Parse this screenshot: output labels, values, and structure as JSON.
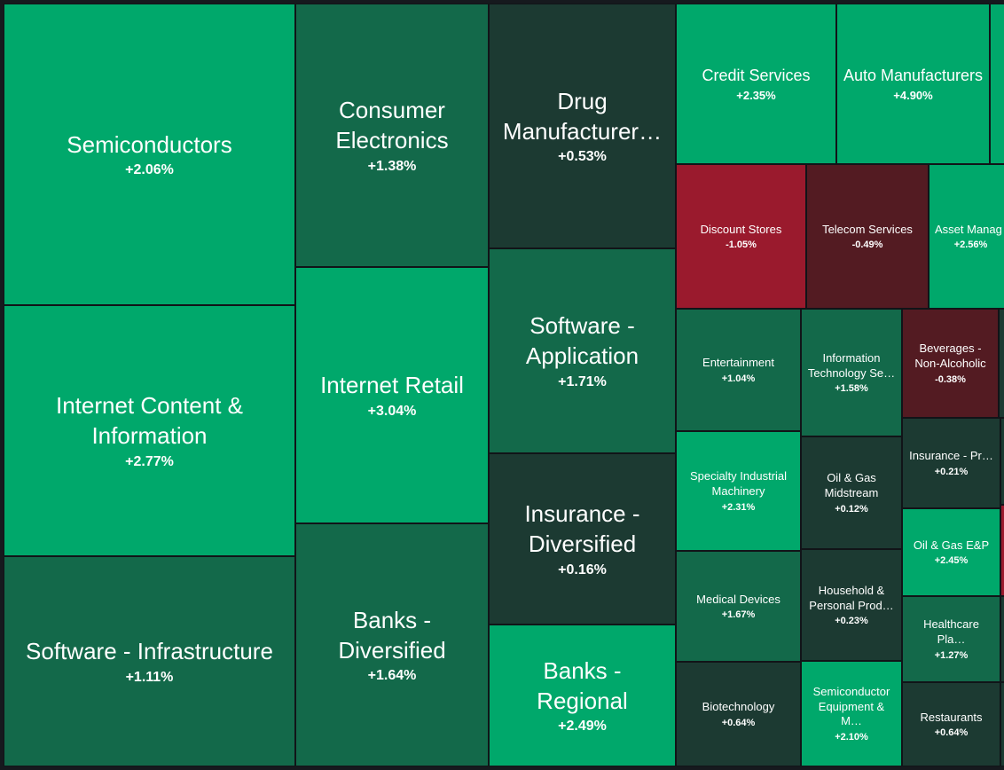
{
  "colors": {
    "bright_green": "#00a86b",
    "mid_green": "#13694a",
    "dark_green": "#1c3a32",
    "red": "#9a1a2d",
    "dark_red": "#531b22",
    "background": "#16191e"
  },
  "tiles": {
    "semiconductors": {
      "name": "Semiconductors",
      "change": "+2.06%"
    },
    "internet_content": {
      "name": "Internet Content & Information",
      "change": "+2.77%"
    },
    "software_infrastructure": {
      "name": "Software - Infrastructure",
      "change": "+1.11%"
    },
    "consumer_electronics": {
      "name": "Consumer Electronics",
      "change": "+1.38%"
    },
    "internet_retail": {
      "name": "Internet Retail",
      "change": "+3.04%"
    },
    "banks_diversified": {
      "name": "Banks - Diversified",
      "change": "+1.64%"
    },
    "drug_manufacturers": {
      "name": "Drug Manufacturer…",
      "change": "+0.53%"
    },
    "software_application": {
      "name": "Software - Application",
      "change": "+1.71%"
    },
    "insurance_diversified": {
      "name": "Insurance - Diversified",
      "change": "+0.16%"
    },
    "banks_regional": {
      "name": "Banks - Regional",
      "change": "+2.49%"
    },
    "credit_services": {
      "name": "Credit Services",
      "change": "+2.35%"
    },
    "auto_manufacturers": {
      "name": "Auto Manufacturers",
      "change": "+4.90%"
    },
    "discount_stores": {
      "name": "Discount Stores",
      "change": "-1.05%"
    },
    "telecom_services": {
      "name": "Telecom Services",
      "change": "-0.49%"
    },
    "asset_management": {
      "name": "Asset Manag",
      "change": "+2.56%"
    },
    "entertainment": {
      "name": "Entertainment",
      "change": "+1.04%"
    },
    "information_technology": {
      "name": "Information Technology Se…",
      "change": "+1.58%"
    },
    "beverages_non_alcoholic": {
      "name": "Beverages - Non-Alcoholic",
      "change": "-0.38%"
    },
    "specialty_industrial": {
      "name": "Specialty Industrial Machinery",
      "change": "+2.31%"
    },
    "oil_gas_midstream": {
      "name": "Oil & Gas Midstream",
      "change": "+0.12%"
    },
    "insurance_property": {
      "name": "Insurance - Pr…",
      "change": "+0.21%"
    },
    "oil_gas_ep": {
      "name": "Oil & Gas E&P",
      "change": "+2.45%"
    },
    "medical_devices": {
      "name": "Medical Devices",
      "change": "+1.67%"
    },
    "household_personal": {
      "name": "Household & Personal Prod…",
      "change": "+0.23%"
    },
    "healthcare_plans": {
      "name": "Healthcare Pla…",
      "change": "+1.27%"
    },
    "biotechnology": {
      "name": "Biotechnology",
      "change": "+0.64%"
    },
    "semiconductor_equipment": {
      "name": "Semiconductor Equipment & M…",
      "change": "+2.10%"
    },
    "restaurants": {
      "name": "Restaurants",
      "change": "+0.64%"
    }
  }
}
